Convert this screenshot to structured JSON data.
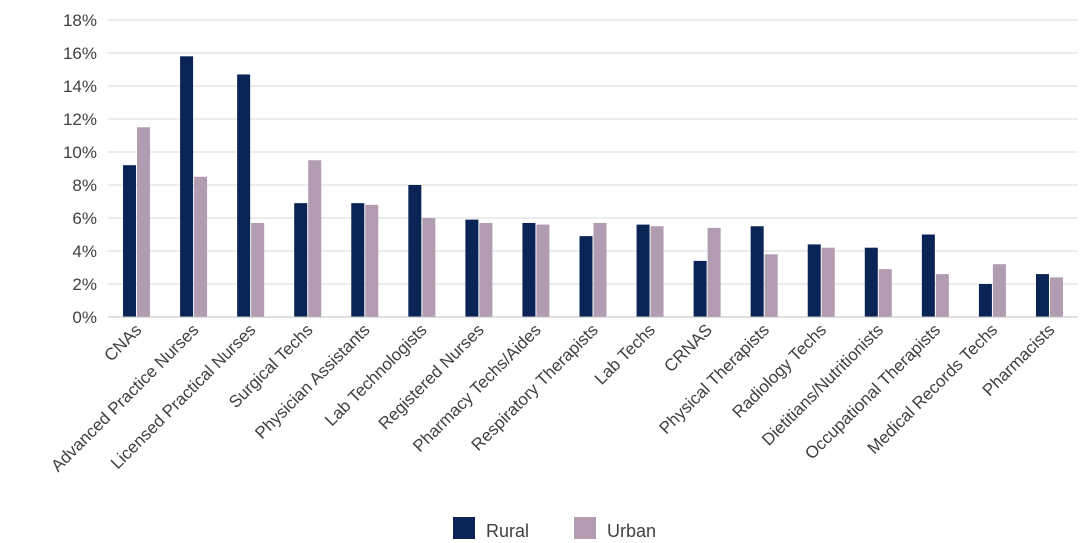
{
  "chart_data": {
    "type": "bar",
    "categories": [
      "CNAs",
      "Advanced Practice Nurses",
      "Licensed Practical Nurses",
      "Surgical Techs",
      "Physician Assistants",
      "Lab Technologists",
      "Registered Nurses",
      "Pharmacy Techs/Aides",
      "Respiratory Therapists",
      "Lab Techs",
      "CRNAS",
      "Physical Therapists",
      "Radiology Techs",
      "Dietitians/Nutritionists",
      "Occupational Therapists",
      "Medical Records Techs",
      "Pharmacists"
    ],
    "series": [
      {
        "name": "Rural",
        "color": "#0a2456",
        "values": [
          9.2,
          15.8,
          14.7,
          6.9,
          6.9,
          8.0,
          5.9,
          5.7,
          4.9,
          5.6,
          3.4,
          5.5,
          4.4,
          4.2,
          5.0,
          2.0,
          2.6
        ]
      },
      {
        "name": "Urban",
        "color": "#b19cb2",
        "values": [
          11.5,
          8.5,
          5.7,
          9.5,
          6.8,
          6.0,
          5.7,
          5.6,
          5.7,
          5.5,
          5.4,
          3.8,
          4.2,
          2.9,
          2.6,
          3.2,
          2.4
        ]
      }
    ],
    "ylim": [
      0,
      18
    ],
    "y_ticks": [
      0,
      2,
      4,
      6,
      8,
      10,
      12,
      14,
      16,
      18
    ],
    "y_tick_labels": [
      "0%",
      "2%",
      "4%",
      "6%",
      "8%",
      "10%",
      "12%",
      "14%",
      "16%",
      "18%"
    ],
    "title": "",
    "xlabel": "",
    "ylabel": "",
    "grid": true,
    "legend_position": "bottom"
  }
}
